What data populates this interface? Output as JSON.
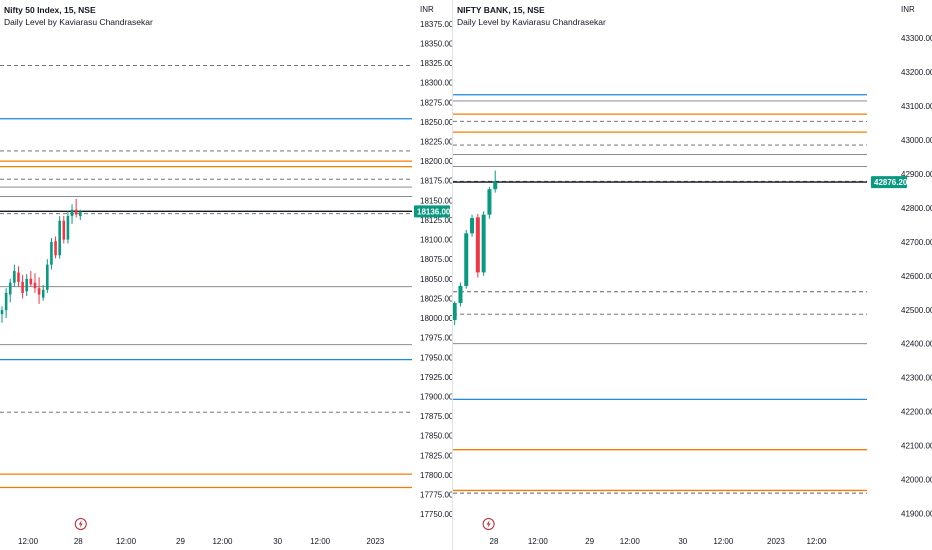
{
  "chart_data": [
    {
      "type": "candlestick",
      "symbol_title": "Nifty 50 Index, 15, NSE",
      "indicator_title": "Daily Level by Kaviarasu Chandrasekar",
      "currency": "INR",
      "ylim": [
        17740,
        18385
      ],
      "y_ticks": [
        "18375.00",
        "18350.00",
        "18325.00",
        "18300.00",
        "18275.00",
        "18250.00",
        "18225.00",
        "18200.00",
        "18175.00",
        "18150.00",
        "18125.00",
        "18100.00",
        "18075.00",
        "18050.00",
        "18025.00",
        "18000.00",
        "17975.00",
        "17950.00",
        "17925.00",
        "17900.00",
        "17875.00",
        "17850.00",
        "17825.00",
        "17800.00",
        "17775.00",
        "17750.00"
      ],
      "x_labels": [
        {
          "label": "12:00",
          "pos": 0.068
        },
        {
          "label": "28",
          "pos": 0.19
        },
        {
          "label": "12:00",
          "pos": 0.306
        },
        {
          "label": "29",
          "pos": 0.438
        },
        {
          "label": "12:00",
          "pos": 0.54
        },
        {
          "label": "30",
          "pos": 0.674
        },
        {
          "label": "12:00",
          "pos": 0.777
        },
        {
          "label": "2023",
          "pos": 0.911
        }
      ],
      "event_marker_pos": 0.196,
      "current_price": 18136.0,
      "current_price_label": "18136.00",
      "price_line": 18136,
      "levels": [
        {
          "value": 18322,
          "style": "dashed",
          "color": "#5d606b"
        },
        {
          "value": 18254,
          "style": "solid",
          "color": "#1e88e5"
        },
        {
          "value": 18213,
          "style": "dashed",
          "color": "#5d606b"
        },
        {
          "value": 18200,
          "style": "solid",
          "color": "#f57c00"
        },
        {
          "value": 18193,
          "style": "solid",
          "color": "#f57c00"
        },
        {
          "value": 18177,
          "style": "dashed",
          "color": "#5d606b"
        },
        {
          "value": 18167,
          "style": "solid",
          "color": "#787b86"
        },
        {
          "value": 18155,
          "style": "solid",
          "color": "#787b86"
        },
        {
          "value": 18133,
          "style": "dashed",
          "color": "#5d606b"
        },
        {
          "value": 18040,
          "style": "solid",
          "color": "#787b86"
        },
        {
          "value": 17966,
          "style": "solid",
          "color": "#787b86"
        },
        {
          "value": 17947,
          "style": "solid",
          "color": "#1e88e5"
        },
        {
          "value": 17880,
          "style": "dashed",
          "color": "#5d606b"
        },
        {
          "value": 17801,
          "style": "solid",
          "color": "#f57c00"
        },
        {
          "value": 17784,
          "style": "solid",
          "color": "#f57c00"
        }
      ],
      "candles": [
        {
          "t": 0.0,
          "o": 18005,
          "h": 18015,
          "l": 17994,
          "c": 18010
        },
        {
          "t": 0.01,
          "o": 18010,
          "h": 18038,
          "l": 18000,
          "c": 18032
        },
        {
          "t": 0.02,
          "o": 18030,
          "h": 18050,
          "l": 18020,
          "c": 18045
        },
        {
          "t": 0.03,
          "o": 18045,
          "h": 18068,
          "l": 18040,
          "c": 18060
        },
        {
          "t": 0.04,
          "o": 18058,
          "h": 18066,
          "l": 18040,
          "c": 18046
        },
        {
          "t": 0.05,
          "o": 18046,
          "h": 18055,
          "l": 18025,
          "c": 18032
        },
        {
          "t": 0.06,
          "o": 18034,
          "h": 18056,
          "l": 18028,
          "c": 18050
        },
        {
          "t": 0.07,
          "o": 18050,
          "h": 18060,
          "l": 18040,
          "c": 18043
        },
        {
          "t": 0.08,
          "o": 18045,
          "h": 18057,
          "l": 18032,
          "c": 18038
        },
        {
          "t": 0.09,
          "o": 18038,
          "h": 18052,
          "l": 18018,
          "c": 18030
        },
        {
          "t": 0.1,
          "o": 18026,
          "h": 18042,
          "l": 18022,
          "c": 18036
        },
        {
          "t": 0.11,
          "o": 18036,
          "h": 18075,
          "l": 18032,
          "c": 18068
        },
        {
          "t": 0.12,
          "o": 18068,
          "h": 18102,
          "l": 18062,
          "c": 18097
        },
        {
          "t": 0.13,
          "o": 18098,
          "h": 18104,
          "l": 18076,
          "c": 18080
        },
        {
          "t": 0.14,
          "o": 18080,
          "h": 18130,
          "l": 18076,
          "c": 18124
        },
        {
          "t": 0.15,
          "o": 18124,
          "h": 18130,
          "l": 18095,
          "c": 18100
        },
        {
          "t": 0.16,
          "o": 18100,
          "h": 18136,
          "l": 18095,
          "c": 18130
        },
        {
          "t": 0.17,
          "o": 18130,
          "h": 18145,
          "l": 18120,
          "c": 18138
        },
        {
          "t": 0.18,
          "o": 18138,
          "h": 18152,
          "l": 18128,
          "c": 18132
        },
        {
          "t": 0.19,
          "o": 18130,
          "h": 18138,
          "l": 18125,
          "c": 18136
        }
      ]
    },
    {
      "type": "candlestick",
      "symbol_title": "NIFTY BANK, 15, NSE",
      "indicator_title": "Daily Level by Kaviarasu Chandrasekar",
      "currency": "INR",
      "ylim": [
        41875,
        43365
      ],
      "y_ticks": [
        "43300.00",
        "43200.00",
        "43100.00",
        "43000.00",
        "42900.00",
        "42800.00",
        "42700.00",
        "42600.00",
        "42500.00",
        "42400.00",
        "42300.00",
        "42200.00",
        "42100.00",
        "42000.00",
        "41900.00"
      ],
      "x_labels": [
        {
          "label": "28",
          "pos": 0.099
        },
        {
          "label": "12:00",
          "pos": 0.205
        },
        {
          "label": "29",
          "pos": 0.33
        },
        {
          "label": "12:00",
          "pos": 0.427
        },
        {
          "label": "30",
          "pos": 0.555
        },
        {
          "label": "12:00",
          "pos": 0.653
        },
        {
          "label": "2023",
          "pos": 0.78
        },
        {
          "label": "12:00",
          "pos": 0.878
        }
      ],
      "event_marker_pos": 0.086,
      "current_price": 42876.2,
      "current_price_label": "42876.20",
      "price_line": 42876,
      "levels": [
        {
          "value": 43133,
          "style": "solid",
          "color": "#1e88e5"
        },
        {
          "value": 43115,
          "style": "solid",
          "color": "#787b86"
        },
        {
          "value": 43076,
          "style": "solid",
          "color": "#f57c00"
        },
        {
          "value": 43055,
          "style": "dashed",
          "color": "#5d606b"
        },
        {
          "value": 43023,
          "style": "solid",
          "color": "#f57c00"
        },
        {
          "value": 42985,
          "style": "dashed",
          "color": "#5d606b"
        },
        {
          "value": 42957,
          "style": "solid",
          "color": "#787b86"
        },
        {
          "value": 42922,
          "style": "solid",
          "color": "#787b86"
        },
        {
          "value": 42878,
          "style": "dashed",
          "color": "#5d606b"
        },
        {
          "value": 42553,
          "style": "dashed",
          "color": "#5d606b"
        },
        {
          "value": 42487,
          "style": "dashed",
          "color": "#5d606b"
        },
        {
          "value": 42400,
          "style": "solid",
          "color": "#787b86"
        },
        {
          "value": 42236,
          "style": "solid",
          "color": "#1e88e5"
        },
        {
          "value": 42088,
          "style": "solid",
          "color": "#f57c00"
        },
        {
          "value": 41968,
          "style": "solid",
          "color": "#f57c00"
        },
        {
          "value": 41960,
          "style": "dashed",
          "color": "#5d606b"
        }
      ],
      "candles": [
        {
          "t": 0.004,
          "o": 42470,
          "h": 42525,
          "l": 42455,
          "c": 42520
        },
        {
          "t": 0.018,
          "o": 42520,
          "h": 42580,
          "l": 42510,
          "c": 42570
        },
        {
          "t": 0.032,
          "o": 42570,
          "h": 42735,
          "l": 42562,
          "c": 42725
        },
        {
          "t": 0.046,
          "o": 42725,
          "h": 42780,
          "l": 42715,
          "c": 42770
        },
        {
          "t": 0.06,
          "o": 42772,
          "h": 42782,
          "l": 42595,
          "c": 42610
        },
        {
          "t": 0.074,
          "o": 42610,
          "h": 42790,
          "l": 42600,
          "c": 42780
        },
        {
          "t": 0.088,
          "o": 42780,
          "h": 42862,
          "l": 42768,
          "c": 42855
        },
        {
          "t": 0.102,
          "o": 42855,
          "h": 42910,
          "l": 42845,
          "c": 42876
        }
      ]
    }
  ]
}
